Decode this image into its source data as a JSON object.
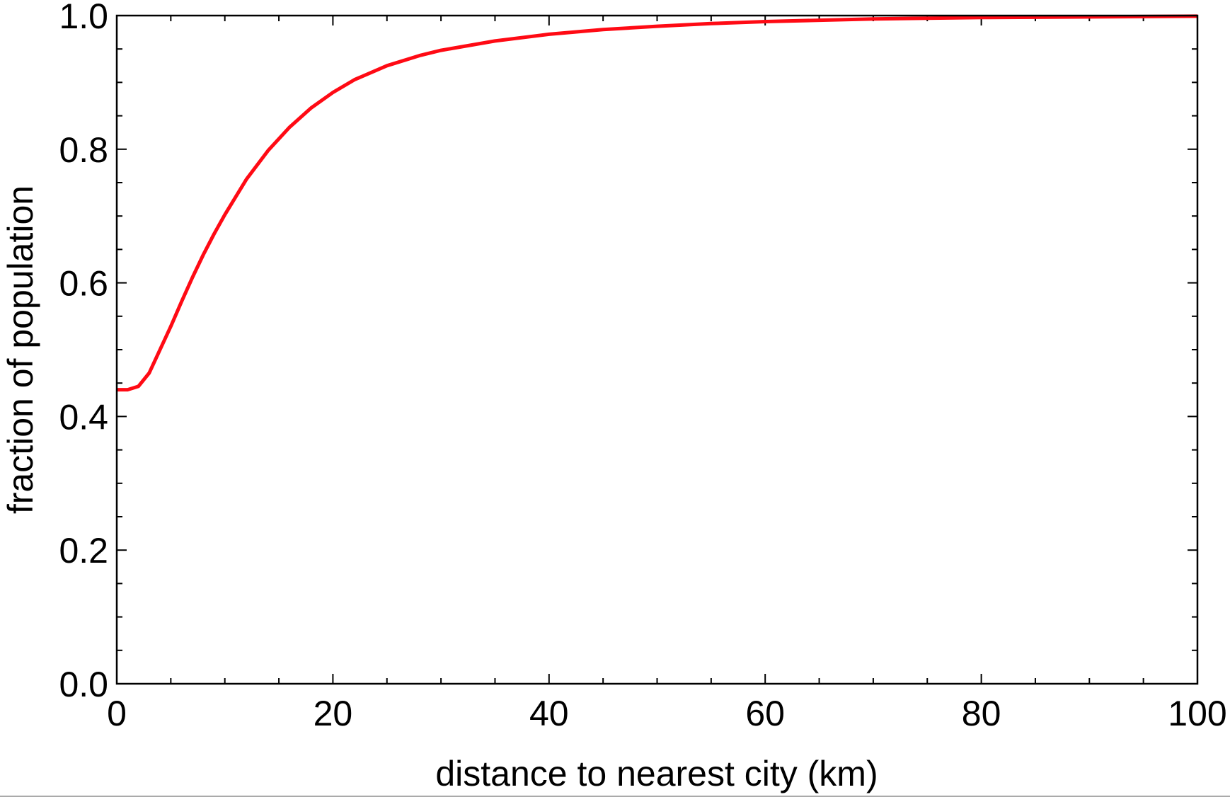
{
  "chart_data": {
    "type": "line",
    "title": "",
    "xlabel": "distance to nearest city (km)",
    "ylabel": "fraction of population",
    "xlim": [
      0,
      100
    ],
    "ylim": [
      0,
      1
    ],
    "grid": false,
    "xticks": [
      "0",
      "20",
      "40",
      "60",
      "80",
      "100"
    ],
    "yticks": [
      "0.0",
      "0.2",
      "0.4",
      "0.6",
      "0.8",
      "1.0"
    ],
    "series": [
      {
        "name": "cumulative fraction",
        "color": "#ff0a14",
        "x": [
          0,
          1,
          2,
          3,
          4,
          5,
          6,
          7,
          8,
          9,
          10,
          12,
          14,
          16,
          18,
          20,
          22,
          25,
          28,
          30,
          35,
          40,
          45,
          50,
          55,
          60,
          70,
          80,
          90,
          100
        ],
        "y": [
          0.44,
          0.44,
          0.445,
          0.465,
          0.5,
          0.535,
          0.572,
          0.608,
          0.642,
          0.673,
          0.702,
          0.755,
          0.798,
          0.833,
          0.862,
          0.885,
          0.904,
          0.925,
          0.94,
          0.948,
          0.962,
          0.972,
          0.979,
          0.984,
          0.988,
          0.991,
          0.995,
          0.997,
          0.998,
          0.999
        ]
      }
    ]
  }
}
